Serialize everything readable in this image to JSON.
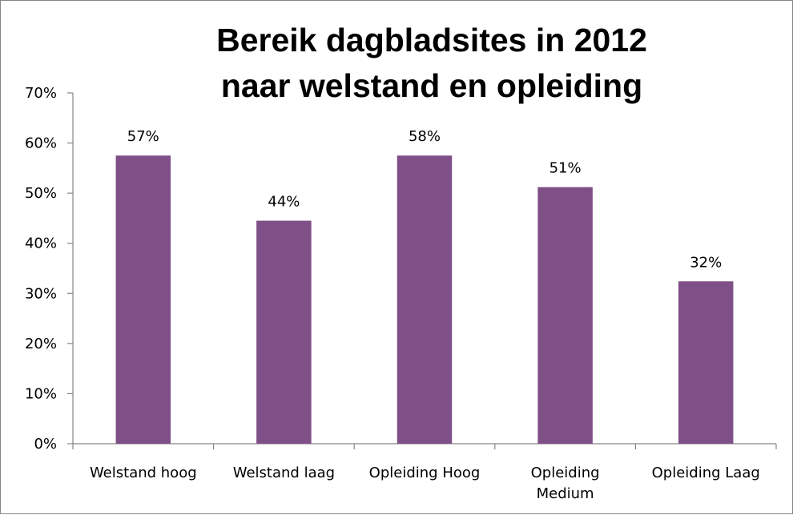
{
  "chart_data": {
    "type": "bar",
    "title": "Bereik dagbladsites in 2012 naar welstand en opleiding",
    "title_lines": [
      "Bereik dagbladsites in 2012",
      "naar welstand en opleiding"
    ],
    "categories": [
      [
        "Welstand hoog"
      ],
      [
        "Welstand laag"
      ],
      [
        "Opleiding Hoog"
      ],
      [
        "Opleiding",
        "Medium"
      ],
      [
        "Opleiding Laag"
      ]
    ],
    "values": [
      0.575,
      0.445,
      0.575,
      0.512,
      0.324
    ],
    "data_labels": [
      "57%",
      "44%",
      "58%",
      "51%",
      "32%"
    ],
    "y_ticks": [
      "0%",
      "10%",
      "20%",
      "30%",
      "40%",
      "50%",
      "60%",
      "70%"
    ],
    "ylim": [
      0,
      0.7
    ],
    "xlabel": "",
    "ylabel": "",
    "grid": false,
    "legend": "none",
    "bar_color": "#7f4f87"
  }
}
